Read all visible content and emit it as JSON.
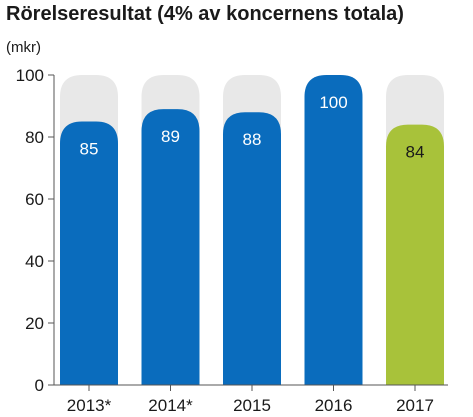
{
  "chart_data": {
    "type": "bar",
    "title": "Rörelseresultat (4% av koncernens totala)",
    "ylabel": "(mkr)",
    "xlabel": "",
    "categories": [
      "2013*",
      "2014*",
      "2015",
      "2016",
      "2017"
    ],
    "values": [
      85,
      89,
      88,
      100,
      84
    ],
    "ylim": [
      0,
      100
    ],
    "yticks": [
      0,
      20,
      40,
      60,
      80,
      100
    ],
    "data_labels": [
      "85",
      "89",
      "88",
      "100",
      "84"
    ],
    "grid": false,
    "colors": {
      "bar": "#0a6cbd",
      "highlight_bar": "#a8c23a",
      "background_bar": "#e8e8e8",
      "axis": "#555555",
      "label_light": "#ffffff",
      "label_dark": "#1a1a1a"
    },
    "highlight_index": 4
  }
}
